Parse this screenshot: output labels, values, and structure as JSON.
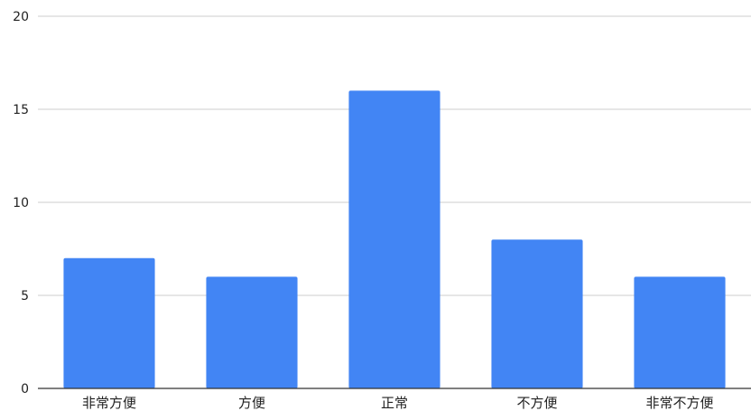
{
  "chart_data": {
    "type": "bar",
    "categories": [
      "非常方便",
      "方便",
      "正常",
      "不方便",
      "非常不方便"
    ],
    "values": [
      7,
      6,
      16,
      8,
      6
    ],
    "title": "",
    "xlabel": "",
    "ylabel": "",
    "ylim": [
      0,
      20
    ],
    "yticks": [
      0,
      5,
      10,
      15,
      20
    ],
    "grid": true,
    "legend": "none",
    "bar_color": "#4285f4"
  }
}
